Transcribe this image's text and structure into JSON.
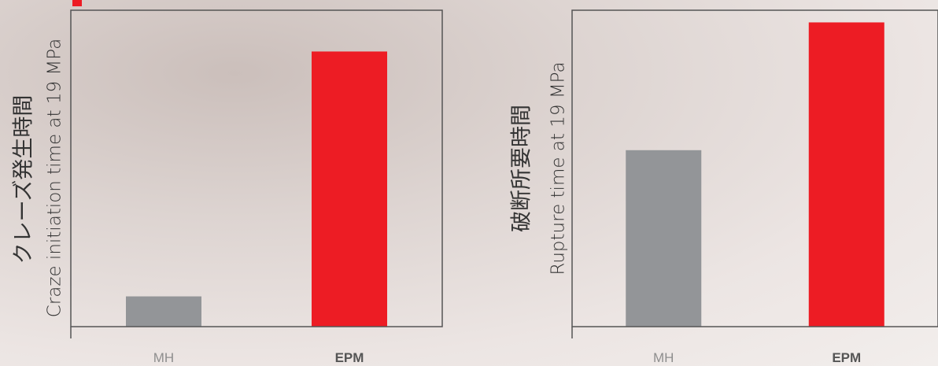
{
  "colors": {
    "accent": "#ed1c24",
    "gray_bar": "#939598",
    "axis": "#555555"
  },
  "chart_data": [
    {
      "type": "bar",
      "categories": [
        "MH",
        "EPM"
      ],
      "values": [
        11,
        100
      ],
      "ylabel_jp": "クレーズ発生時間",
      "ylabel_en": "Craze initiation time at 19 MPa",
      "ylim": [
        0,
        115
      ],
      "colors": [
        "#939598",
        "#ed1c24"
      ]
    },
    {
      "type": "bar",
      "categories": [
        "MH",
        "EPM"
      ],
      "values": [
        58,
        100
      ],
      "ylabel_jp": "破断所要時間",
      "ylabel_en": "Rupture time at 19 MPa",
      "ylim": [
        0,
        104
      ],
      "colors": [
        "#939598",
        "#ed1c24"
      ]
    }
  ]
}
